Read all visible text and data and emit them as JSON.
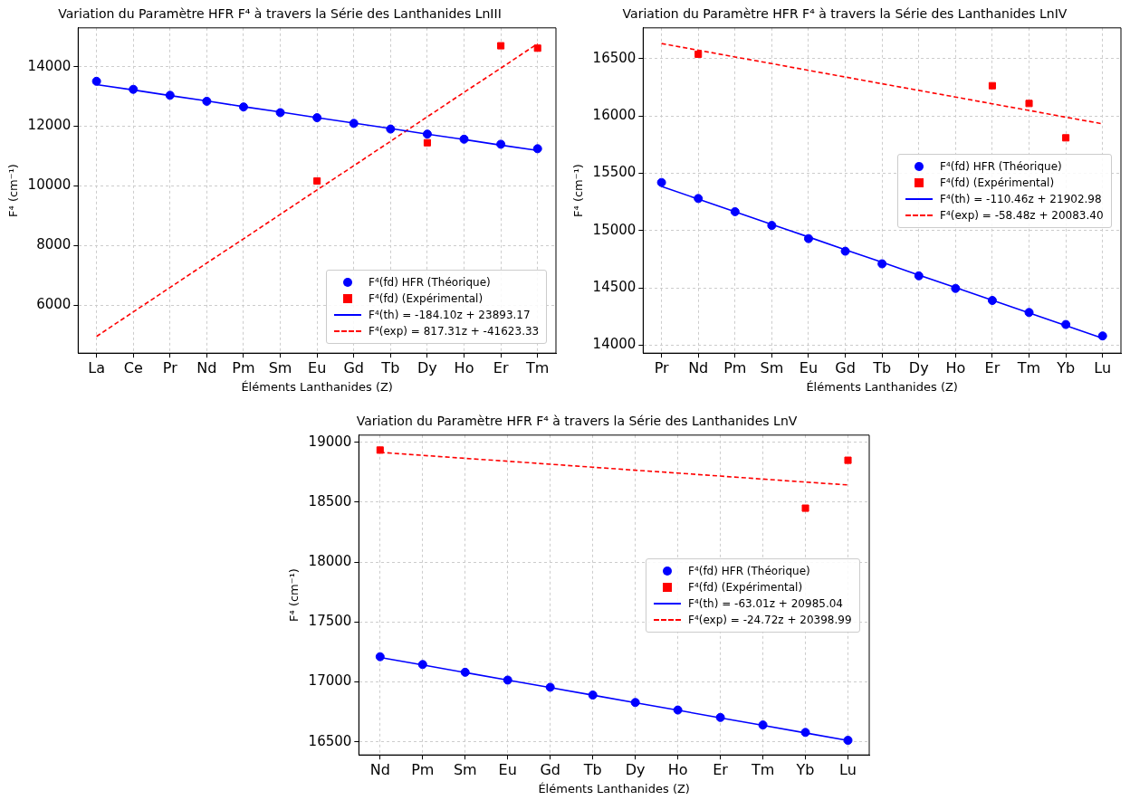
{
  "chart_data": [
    {
      "type": "scatter",
      "title": "Variation du Paramètre HFR F⁴ à travers la Série des Lanthanides LnIII",
      "xlabel": "Éléments Lanthanides (Z)",
      "ylabel": "F⁴ (cm⁻¹)",
      "categories": [
        "La",
        "Ce",
        "Pr",
        "Nd",
        "Pm",
        "Sm",
        "Eu",
        "Gd",
        "Tb",
        "Dy",
        "Ho",
        "Er",
        "Tm"
      ],
      "ylim": [
        4400,
        15300
      ],
      "yticks": [
        6000,
        8000,
        10000,
        12000,
        14000
      ],
      "grid": true,
      "legend": "bottom right",
      "series": [
        {
          "name": "F⁴(fd) HFR (Théorique)",
          "marker": "circle",
          "color": "#0000ff",
          "values": [
            13510,
            13240,
            13040,
            12840,
            12650,
            12460,
            12290,
            12100,
            11910,
            11740,
            11570,
            11400,
            11250
          ]
        },
        {
          "name": "F⁴(fd) (Expérimental)",
          "marker": "square",
          "color": "#ff0000",
          "values": [
            null,
            null,
            null,
            null,
            null,
            null,
            10170,
            null,
            null,
            11450,
            null,
            14700,
            14620
          ]
        },
        {
          "name": "F⁴(th) = -184.10z + 23893.17",
          "type": "line",
          "marker": "none",
          "line_style": "solid",
          "color": "#0000ff",
          "values": [
            13400,
            13220,
            13030,
            12850,
            12660,
            12480,
            12290,
            12110,
            11930,
            11740,
            11560,
            11370,
            11190
          ]
        },
        {
          "name": "F⁴(exp) = 817.31z + -41623.33",
          "type": "line",
          "marker": "none",
          "line_style": "dashed",
          "color": "#ff0000",
          "values": [
            4960,
            5780,
            6600,
            7420,
            8230,
            9050,
            9870,
            10680,
            11500,
            12320,
            13140,
            13950,
            14770
          ]
        }
      ]
    },
    {
      "type": "scatter",
      "title": "Variation du Paramètre HFR F⁴ à travers la Série des Lanthanides LnIV",
      "xlabel": "Éléments Lanthanides (Z)",
      "ylabel": "F⁴ (cm⁻¹)",
      "categories": [
        "Pr",
        "Nd",
        "Pm",
        "Sm",
        "Eu",
        "Gd",
        "Tb",
        "Dy",
        "Ho",
        "Er",
        "Tm",
        "Yb",
        "Lu"
      ],
      "ylim": [
        13930,
        16770
      ],
      "yticks": [
        14000,
        14500,
        15000,
        15500,
        16000,
        16500
      ],
      "grid": true,
      "legend": "right",
      "series": [
        {
          "name": "F⁴(fd) HFR (Théorique)",
          "marker": "circle",
          "color": "#0000ff",
          "values": [
            15420,
            15280,
            15165,
            15045,
            14930,
            14820,
            14710,
            14605,
            14495,
            14390,
            14285,
            14180,
            14080
          ]
        },
        {
          "name": "F⁴(fd) (Expérimental)",
          "marker": "square",
          "color": "#ff0000",
          "values": [
            null,
            16540,
            null,
            null,
            null,
            null,
            null,
            null,
            null,
            16265,
            16110,
            15810,
            null
          ]
        },
        {
          "name": "F⁴(th) = -110.46z + 21902.98",
          "type": "line",
          "marker": "none",
          "line_style": "solid",
          "color": "#0000ff",
          "values": [
            15386,
            15275,
            15165,
            15054,
            14944,
            14833,
            14723,
            14612,
            14502,
            14391,
            14281,
            14170,
            14060
          ]
        },
        {
          "name": "F⁴(exp) = -58.48z + 20083.40",
          "type": "line",
          "marker": "none",
          "line_style": "dashed",
          "color": "#ff0000",
          "values": [
            16633,
            16575,
            16516,
            16458,
            16399,
            16341,
            16282,
            16224,
            16166,
            16107,
            16049,
            15990,
            15932
          ]
        }
      ]
    },
    {
      "type": "scatter",
      "title": "Variation du Paramètre HFR F⁴ à travers la Série des Lanthanides LnV",
      "xlabel": "Éléments Lanthanides (Z)",
      "ylabel": "F⁴ (cm⁻¹)",
      "categories": [
        "Nd",
        "Pm",
        "Sm",
        "Eu",
        "Gd",
        "Tb",
        "Dy",
        "Ho",
        "Er",
        "Tm",
        "Yb",
        "Lu"
      ],
      "ylim": [
        16390,
        19060
      ],
      "yticks": [
        16500,
        17000,
        17500,
        18000,
        18500,
        19000
      ],
      "grid": true,
      "legend": "right",
      "series": [
        {
          "name": "F⁴(fd) HFR (Théorique)",
          "marker": "circle",
          "color": "#0000ff",
          "values": [
            17210,
            17145,
            17080,
            17015,
            16955,
            16890,
            16828,
            16765,
            16703,
            16640,
            16578,
            16512
          ]
        },
        {
          "name": "F⁴(fd) (Expérimental)",
          "marker": "square",
          "color": "#ff0000",
          "values": [
            18935,
            null,
            null,
            null,
            null,
            null,
            null,
            null,
            null,
            null,
            18450,
            18850
          ]
        },
        {
          "name": "F⁴(th) = -63.01z + 20985.04",
          "type": "line",
          "marker": "none",
          "line_style": "solid",
          "color": "#0000ff",
          "values": [
            17204,
            17141,
            17078,
            17015,
            16952,
            16889,
            16826,
            16763,
            16700,
            16637,
            16574,
            16511
          ]
        },
        {
          "name": "F⁴(exp) = -24.72z + 20398.99",
          "type": "line",
          "marker": "none",
          "line_style": "dashed",
          "color": "#ff0000",
          "values": [
            18916,
            18891,
            18866,
            18842,
            18817,
            18792,
            18767,
            18743,
            18718,
            18693,
            18668,
            18644
          ]
        }
      ]
    }
  ]
}
